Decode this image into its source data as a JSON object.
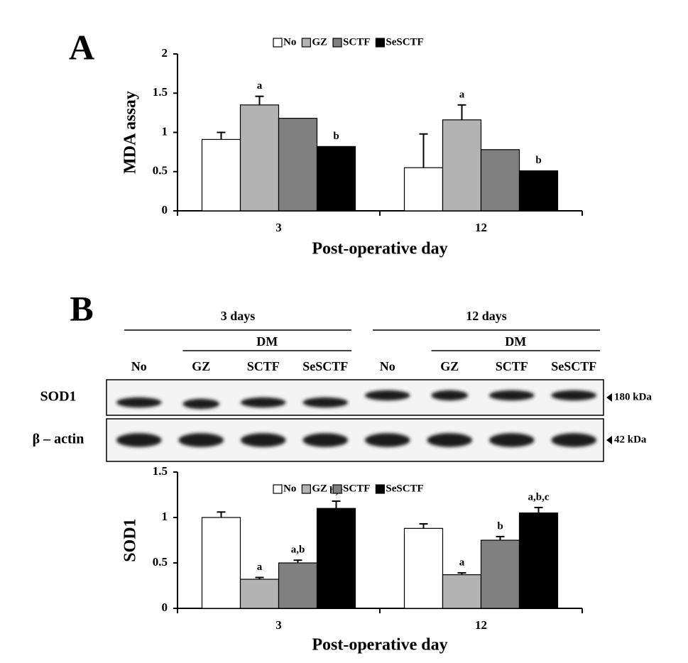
{
  "chart_data": [
    {
      "type": "bar",
      "panel_label": "A",
      "ylabel": "MDA assay",
      "xlabel": "Post-operative day",
      "categories": [
        "3",
        "12"
      ],
      "series": [
        {
          "name": "No",
          "color": "#ffffff",
          "values": [
            0.91,
            0.55
          ],
          "errors": [
            0.09,
            0.43
          ],
          "annotations": [
            null,
            null
          ]
        },
        {
          "name": "GZ",
          "color": "#b3b3b3",
          "values": [
            1.35,
            1.16
          ],
          "errors": [
            0.11,
            0.19
          ],
          "annotations": [
            "a",
            "a"
          ]
        },
        {
          "name": "SCTF",
          "color": "#808080",
          "values": [
            1.18,
            0.78
          ],
          "annotations": [
            null,
            null
          ]
        },
        {
          "name": "SeSCTF",
          "color": "#000000",
          "values": [
            0.82,
            0.51
          ],
          "annotations": [
            "b",
            "b"
          ]
        }
      ],
      "ylim": [
        0,
        2
      ],
      "yticks": [
        0,
        0.5,
        1,
        1.5,
        2
      ],
      "legend": "top"
    },
    {
      "type": "bar",
      "panel_label": "B",
      "ylabel": "SOD1",
      "xlabel": "Post-operative day",
      "categories": [
        "3",
        "12"
      ],
      "series": [
        {
          "name": "No",
          "color": "#ffffff",
          "values": [
            1.0,
            0.88
          ],
          "errors": [
            0.06,
            0.05
          ],
          "annotations": [
            null,
            null
          ]
        },
        {
          "name": "GZ",
          "color": "#b3b3b3",
          "values": [
            0.32,
            0.37
          ],
          "errors": [
            0.02,
            0.02
          ],
          "annotations": [
            "a",
            "a"
          ]
        },
        {
          "name": "SCTF",
          "color": "#808080",
          "values": [
            0.5,
            0.75
          ],
          "errors": [
            0.03,
            0.04
          ],
          "annotations": [
            "a,b",
            "b"
          ]
        },
        {
          "name": "SeSCTF",
          "color": "#000000",
          "values": [
            1.1,
            1.05
          ],
          "errors": [
            0.08,
            0.06
          ],
          "annotations": [
            "b,c",
            "a,b,c"
          ]
        }
      ],
      "ylim": [
        0,
        1.5
      ],
      "yticks": [
        0,
        0.5,
        1,
        1.5
      ],
      "legend": "top"
    }
  ],
  "blot": {
    "groups": [
      {
        "label": "3 days",
        "subgroup": "DM"
      },
      {
        "label": "12 days",
        "subgroup": "DM"
      }
    ],
    "lanes": [
      "No",
      "GZ",
      "SCTF",
      "SeSCTF",
      "No",
      "GZ",
      "SCTF",
      "SeSCTF"
    ],
    "rows": [
      {
        "label": "SOD1",
        "size": "180 kDa"
      },
      {
        "label": "β – actin",
        "size": "42 kDa"
      }
    ]
  }
}
